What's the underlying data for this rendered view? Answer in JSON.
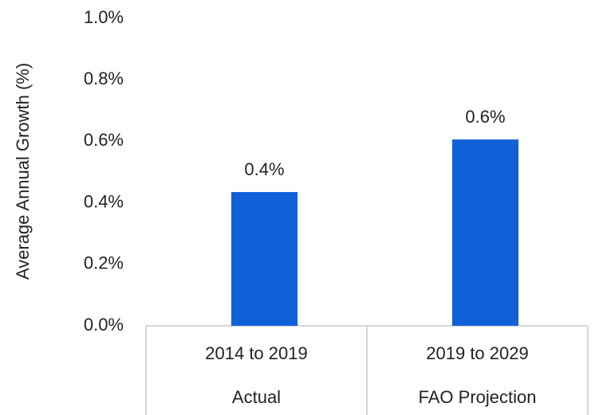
{
  "chart_data": {
    "type": "bar",
    "y_label": "Average Annual Growth (%)",
    "categories": [
      "2014 to 2019",
      "2019 to 2029"
    ],
    "category_groups": [
      "Actual",
      "FAO Projection"
    ],
    "values": [
      0.435,
      0.606
    ],
    "value_labels": [
      "0.4%",
      "0.6%"
    ],
    "color": "#1160d8",
    "ylim": [
      0,
      1.0
    ],
    "yticks": [
      {
        "value": 0,
        "label": "0.0%"
      },
      {
        "value": 0.2,
        "label": "0.2%"
      },
      {
        "value": 0.4,
        "label": "0.4%"
      },
      {
        "value": 0.6,
        "label": "0.6%"
      },
      {
        "value": 0.8,
        "label": "0.8%"
      },
      {
        "value": 1.0,
        "label": "1.0%"
      }
    ],
    "grid": false
  }
}
